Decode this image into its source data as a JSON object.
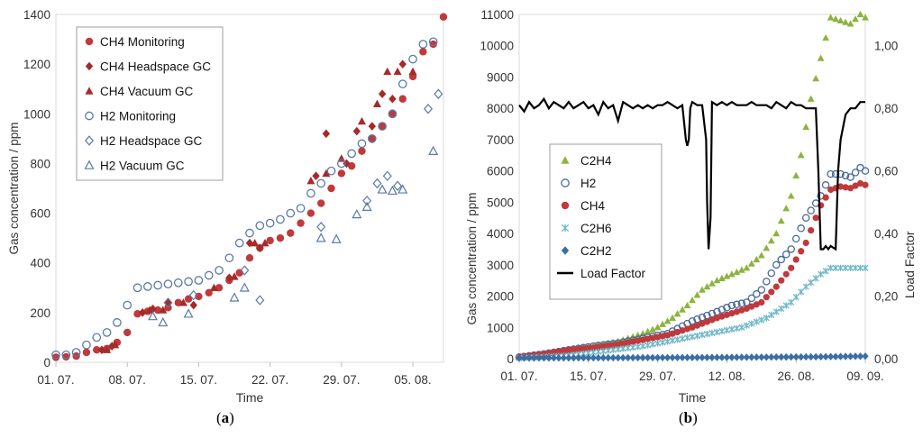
{
  "chart_data": [
    {
      "type": "scatter",
      "panel_label": "a",
      "xlabel": "Time",
      "ylabel": "Gas concentration / ppm",
      "x_unit": "days since 01.07.",
      "xlim": [
        0,
        38
      ],
      "ylim": [
        0,
        1400
      ],
      "y_ticks": [
        0,
        200,
        400,
        600,
        800,
        1000,
        1200,
        1400
      ],
      "x_ticks": [
        {
          "value": 0,
          "label": "01. 07."
        },
        {
          "value": 7,
          "label": "08. 07."
        },
        {
          "value": 14,
          "label": "15. 07."
        },
        {
          "value": 21,
          "label": "22. 07."
        },
        {
          "value": 28,
          "label": "29. 07."
        },
        {
          "value": 35,
          "label": "05. 08."
        }
      ],
      "legend": {
        "position": "top-left"
      },
      "series": [
        {
          "name": "CH4 Monitoring",
          "marker": "circle-filled",
          "color": "#c0393b",
          "x": [
            0,
            1,
            2,
            3,
            4,
            5,
            6,
            7,
            8,
            9,
            10,
            11,
            12,
            13,
            14,
            15,
            16,
            17,
            18,
            19,
            20,
            21,
            22,
            23,
            24,
            25,
            26,
            27,
            28,
            29,
            30,
            31,
            32,
            33,
            34,
            35,
            36,
            37,
            38
          ],
          "y": [
            20,
            22,
            25,
            40,
            50,
            55,
            80,
            120,
            195,
            205,
            210,
            220,
            240,
            255,
            265,
            280,
            300,
            330,
            360,
            420,
            460,
            490,
            500,
            520,
            560,
            600,
            640,
            700,
            760,
            790,
            850,
            900,
            950,
            1000,
            1060,
            1150,
            1250,
            1280,
            1390
          ]
        },
        {
          "name": "CH4 Headspace GC",
          "marker": "diamond-filled",
          "color": "#a52a2a",
          "x": [
            4.5,
            5.5,
            8.5,
            9.5,
            11,
            13.5,
            17,
            19,
            20,
            25.5,
            26.5,
            28.5,
            29.5,
            31,
            32,
            33,
            34
          ],
          "y": [
            50,
            65,
            200,
            215,
            240,
            230,
            340,
            480,
            460,
            750,
            920,
            800,
            930,
            950,
            1080,
            1060,
            1200
          ]
        },
        {
          "name": "CH4 Vacuum GC",
          "marker": "triangle-filled",
          "color": "#a52a2a",
          "x": [
            5,
            5.8,
            9.2,
            10.5,
            12.5,
            15.5,
            17.5,
            19.5,
            20.5,
            25,
            26.5,
            28,
            30,
            31.5,
            32.5,
            33.5,
            35
          ],
          "y": [
            50,
            70,
            210,
            210,
            240,
            300,
            345,
            480,
            480,
            730,
            760,
            820,
            970,
            1040,
            1170,
            1170,
            1170
          ]
        },
        {
          "name": "H2 Monitoring",
          "marker": "circle-open",
          "color": "#5a7aa8",
          "x": [
            0,
            1,
            2,
            3,
            4,
            5,
            6,
            7,
            8,
            9,
            10,
            11,
            12,
            13,
            14,
            15,
            16,
            17,
            18,
            19,
            20,
            21,
            22,
            23,
            24,
            25,
            26,
            27,
            28,
            29,
            30,
            31,
            32,
            33,
            34,
            35,
            36,
            37
          ],
          "y": [
            30,
            30,
            40,
            70,
            100,
            120,
            160,
            230,
            300,
            305,
            310,
            315,
            320,
            325,
            330,
            350,
            370,
            420,
            480,
            520,
            550,
            560,
            575,
            600,
            620,
            680,
            720,
            770,
            800,
            840,
            880,
            900,
            950,
            1000,
            1120,
            1220,
            1280,
            1290
          ]
        },
        {
          "name": "H2 Headspace GC",
          "marker": "diamond-open",
          "color": "#5a7aa8",
          "x": [
            11,
            13.5,
            18.5,
            20,
            26,
            30.5,
            31.5,
            32.5,
            33.5,
            36.5,
            37.5
          ],
          "y": [
            240,
            270,
            370,
            250,
            545,
            650,
            720,
            750,
            710,
            1020,
            1080
          ]
        },
        {
          "name": "H2 Vacuum GC",
          "marker": "triangle-open",
          "color": "#5a7aa8",
          "x": [
            9.5,
            10.5,
            13,
            17.5,
            18.5,
            26,
            27.5,
            29.5,
            30.5,
            32,
            33,
            34,
            37
          ],
          "y": [
            185,
            160,
            195,
            260,
            300,
            500,
            495,
            595,
            625,
            695,
            690,
            695,
            850
          ]
        }
      ]
    },
    {
      "type": "line",
      "panel_label": "b",
      "xlabel": "Time",
      "ylabel": "Gas concentration / ppm",
      "y2label": "Load Factor",
      "x_unit": "days since 01.07.",
      "xlim": [
        0,
        70
      ],
      "ylim": [
        0,
        11000
      ],
      "y2lim": [
        0,
        1.1
      ],
      "y_ticks": [
        0,
        1000,
        2000,
        3000,
        4000,
        5000,
        6000,
        7000,
        8000,
        9000,
        10000,
        11000
      ],
      "y2_ticks": [
        {
          "value": 0,
          "label": "0,00"
        },
        {
          "value": 0.2,
          "label": "0,20"
        },
        {
          "value": 0.4,
          "label": "0,40"
        },
        {
          "value": 0.6,
          "label": "0,60"
        },
        {
          "value": 0.8,
          "label": "0,80"
        },
        {
          "value": 1.0,
          "label": "1,00"
        }
      ],
      "x_ticks": [
        {
          "value": 0,
          "label": "01. 07."
        },
        {
          "value": 14,
          "label": "15. 07."
        },
        {
          "value": 28,
          "label": "29. 07."
        },
        {
          "value": 42,
          "label": "12. 08."
        },
        {
          "value": 56,
          "label": "26. 08."
        },
        {
          "value": 70,
          "label": "09. 09."
        }
      ],
      "legend": {
        "position": "center-left"
      },
      "series": [
        {
          "name": "C2H4",
          "marker": "triangle-filled",
          "color": "#8db33e",
          "axis": "left",
          "x": [
            0,
            5,
            10,
            15,
            20,
            25,
            28,
            31,
            34,
            37,
            40,
            43,
            46,
            49,
            52,
            55,
            57,
            59,
            61,
            63,
            65,
            67,
            69,
            70
          ],
          "y": [
            50,
            150,
            300,
            400,
            550,
            800,
            1000,
            1300,
            1700,
            2200,
            2500,
            2700,
            2900,
            3300,
            4000,
            5200,
            6500,
            8300,
            9600,
            10900,
            10800,
            10700,
            11000,
            10900
          ]
        },
        {
          "name": "H2",
          "marker": "circle-open",
          "color": "#4a6a9a",
          "axis": "left",
          "x": [
            0,
            5,
            10,
            15,
            20,
            25,
            30,
            35,
            40,
            43,
            46,
            49,
            52,
            55,
            58,
            61,
            63,
            65,
            67,
            69,
            70
          ],
          "y": [
            50,
            150,
            280,
            400,
            500,
            650,
            800,
            1200,
            1500,
            1700,
            1800,
            2200,
            3000,
            3500,
            4500,
            5200,
            5900,
            5900,
            5800,
            6100,
            6000
          ]
        },
        {
          "name": "CH4",
          "marker": "circle-filled",
          "color": "#c0393b",
          "axis": "left",
          "x": [
            0,
            5,
            10,
            15,
            20,
            25,
            30,
            35,
            40,
            43,
            46,
            49,
            52,
            55,
            58,
            61,
            63,
            65,
            67,
            69,
            70
          ],
          "y": [
            50,
            150,
            280,
            350,
            450,
            600,
            750,
            1000,
            1300,
            1450,
            1600,
            1800,
            2300,
            2900,
            3700,
            4900,
            5400,
            5500,
            5450,
            5600,
            5550
          ]
        },
        {
          "name": "C2H6",
          "marker": "x",
          "color": "#6fb7c8",
          "axis": "left",
          "x": [
            0,
            5,
            10,
            15,
            20,
            25,
            30,
            35,
            40,
            45,
            50,
            55,
            58,
            61,
            63,
            65,
            67,
            69,
            70
          ],
          "y": [
            20,
            60,
            100,
            200,
            300,
            400,
            550,
            700,
            850,
            1000,
            1300,
            1800,
            2300,
            2700,
            2900,
            2900,
            2900,
            2900,
            2900
          ]
        },
        {
          "name": "C2H2",
          "marker": "diamond-filled",
          "color": "#3a6ea5",
          "axis": "left",
          "x": [
            0,
            10,
            20,
            30,
            40,
            50,
            60,
            70
          ],
          "y": [
            20,
            25,
            30,
            35,
            40,
            50,
            60,
            80
          ]
        },
        {
          "name": "Load Factor",
          "marker": "none",
          "color": "#000000",
          "axis": "right",
          "x": [
            0,
            1,
            2,
            3,
            4,
            5,
            6,
            7,
            8,
            9,
            10,
            11,
            12,
            13,
            14,
            15,
            16,
            17,
            18,
            19,
            20,
            21,
            22,
            23,
            24,
            25,
            26,
            27,
            28,
            29,
            30,
            31,
            32,
            33,
            33.7,
            34,
            34.3,
            34.6,
            35,
            36,
            37,
            37.8,
            38,
            38.3,
            38.7,
            39,
            40,
            41,
            42,
            43,
            44,
            45,
            46,
            47,
            48,
            49,
            50,
            51,
            52,
            53,
            54,
            55,
            56,
            57,
            58,
            59,
            60,
            60.5,
            61,
            61.5,
            62,
            62.5,
            63,
            64,
            64.5,
            65,
            66,
            67,
            68,
            69,
            70
          ],
          "y": [
            0.81,
            0.79,
            0.82,
            0.8,
            0.81,
            0.83,
            0.8,
            0.82,
            0.81,
            0.8,
            0.82,
            0.8,
            0.81,
            0.82,
            0.8,
            0.81,
            0.78,
            0.82,
            0.8,
            0.81,
            0.76,
            0.82,
            0.81,
            0.8,
            0.81,
            0.8,
            0.81,
            0.8,
            0.81,
            0.81,
            0.82,
            0.81,
            0.8,
            0.81,
            0.7,
            0.68,
            0.7,
            0.8,
            0.82,
            0.81,
            0.81,
            0.7,
            0.5,
            0.35,
            0.45,
            0.82,
            0.81,
            0.82,
            0.81,
            0.82,
            0.81,
            0.81,
            0.81,
            0.82,
            0.81,
            0.81,
            0.81,
            0.8,
            0.82,
            0.81,
            0.8,
            0.82,
            0.81,
            0.81,
            0.8,
            0.8,
            0.8,
            0.6,
            0.35,
            0.35,
            0.36,
            0.35,
            0.36,
            0.35,
            0.6,
            0.7,
            0.78,
            0.8,
            0.8,
            0.82,
            0.82
          ]
        }
      ]
    }
  ],
  "captions": {
    "a_open": "(",
    "a_letter": "a",
    "a_close": ")",
    "b_open": "(",
    "b_letter": "b",
    "b_close": ")"
  }
}
